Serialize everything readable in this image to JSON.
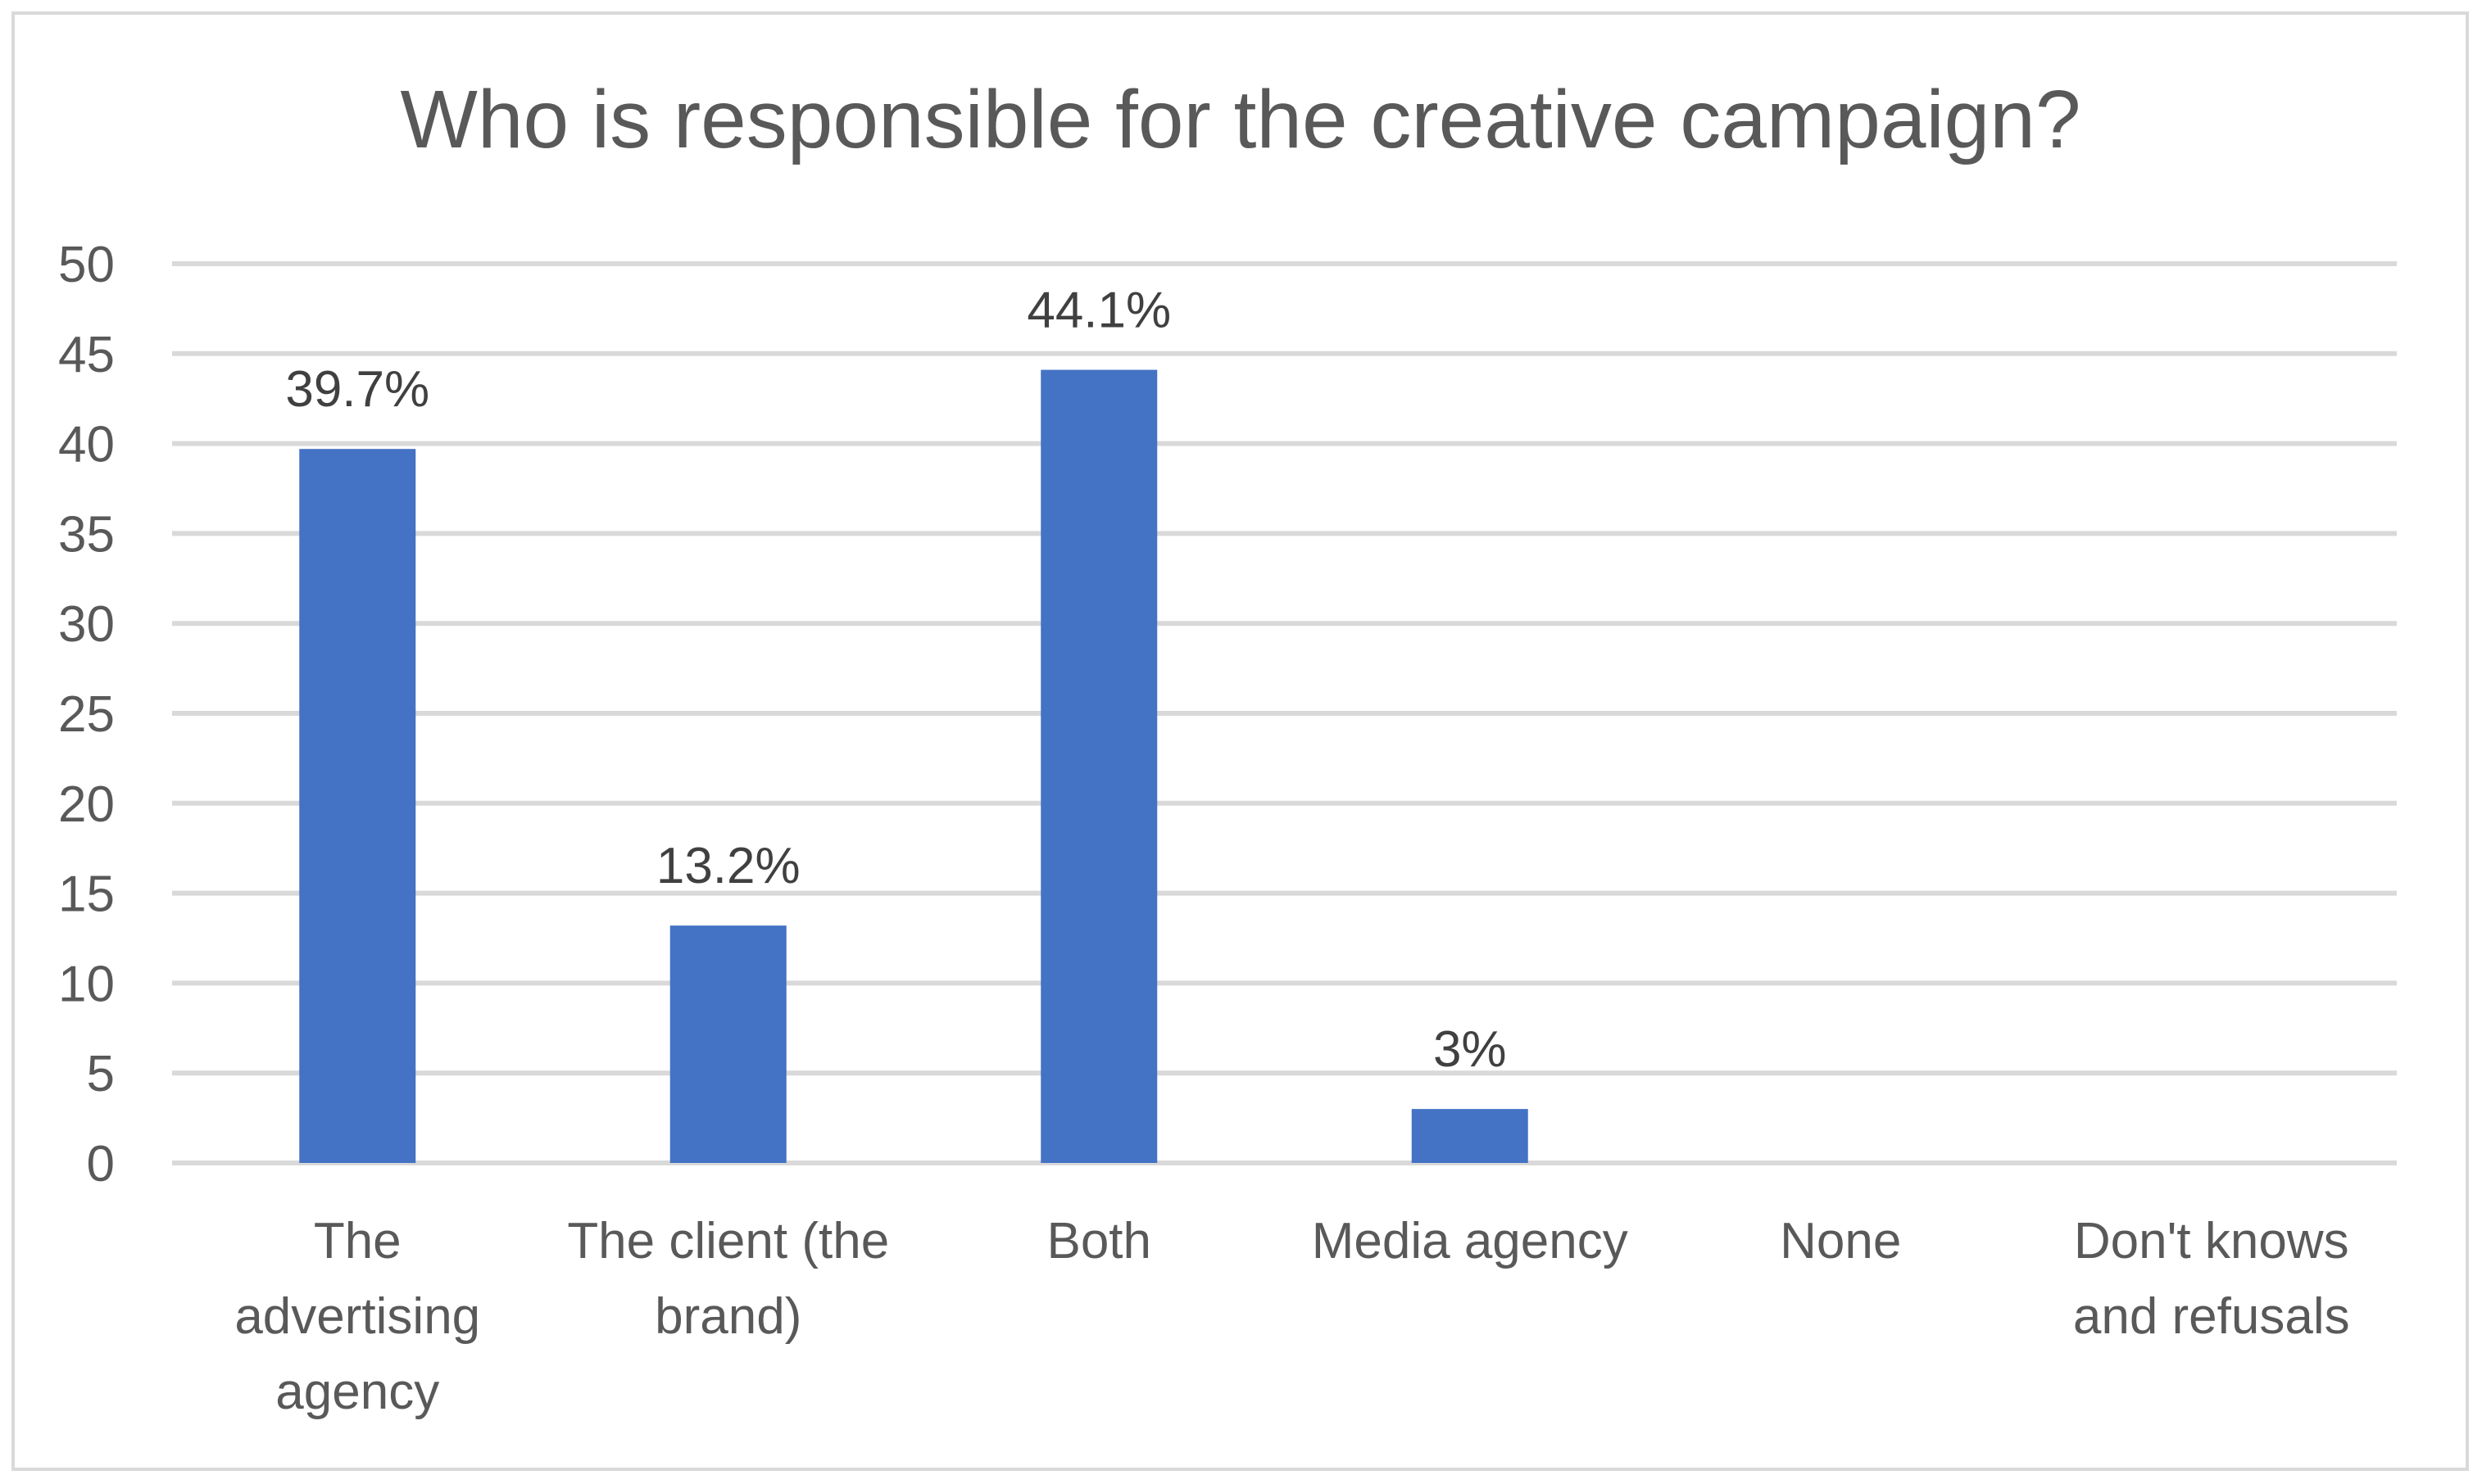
{
  "chart_data": {
    "type": "bar",
    "title": "Who is responsible for the creative campaign?",
    "categories": [
      [
        "The",
        "advertising",
        "agency"
      ],
      [
        "The client (the",
        "brand)"
      ],
      [
        "Both"
      ],
      [
        "Media agency"
      ],
      [
        "None"
      ],
      [
        "Don't knows",
        "and refusals"
      ]
    ],
    "values": [
      39.7,
      13.2,
      44.1,
      3,
      null,
      null
    ],
    "data_labels": [
      "39.7%",
      "13.2%",
      "44.1%",
      "3%",
      "",
      ""
    ],
    "ylim": [
      0,
      50
    ],
    "yticks": [
      0,
      5,
      10,
      15,
      20,
      25,
      30,
      35,
      40,
      45,
      50
    ],
    "xlabel": "",
    "ylabel": "",
    "grid": true,
    "legend": "none",
    "colors": {
      "bar": "#4472c4",
      "grid": "#d9d9d9",
      "text": "#595959",
      "data_label": "#404040",
      "border": "#d9d9d9"
    }
  }
}
